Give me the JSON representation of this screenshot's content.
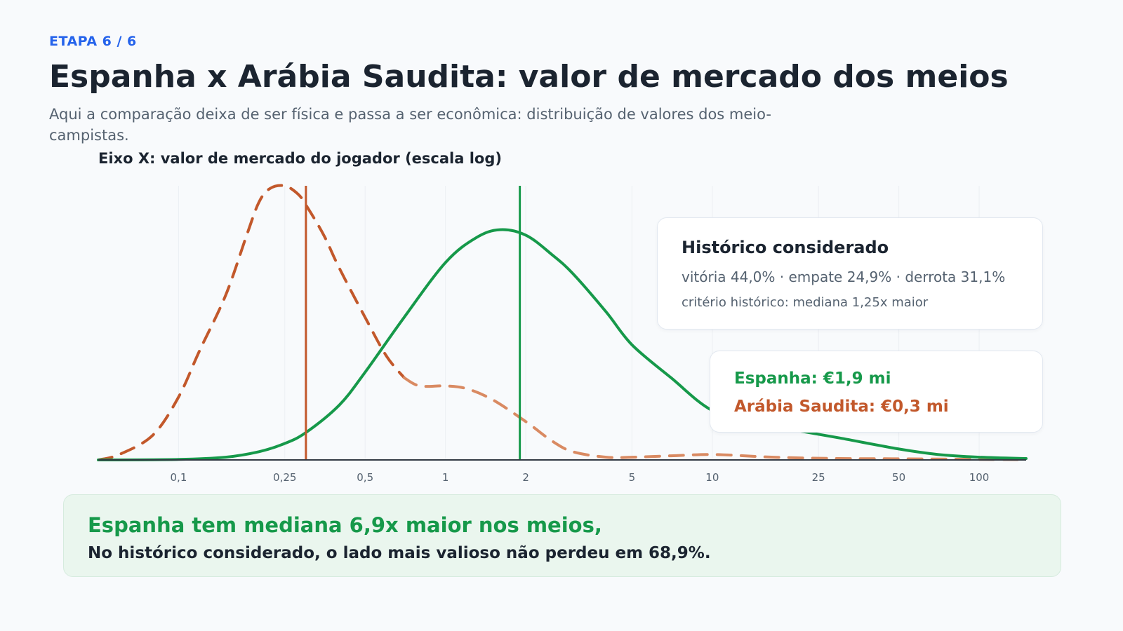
{
  "header": {
    "step": "ETAPA 6 / 6",
    "title": "Espanha x Arábia Saudita: valor de mercado dos meios",
    "subtitle": "Aqui a comparação deixa de ser física e passa a ser econômica: distribuição de valores dos meio-campistas."
  },
  "colors": {
    "spain": "#16994a",
    "saudi": "#c2582b",
    "saudi_light": "#d98a62",
    "grid": "#eceff3",
    "axis": "#333a44"
  },
  "chart_data": {
    "type": "line",
    "xscale": "log",
    "xlabel": "Eixo X: valor de mercado do jogador (escala log)",
    "ylabel": "",
    "xlim": [
      0.05,
      150
    ],
    "ylim": [
      0,
      1.0
    ],
    "grid": "vertical",
    "xticks": [
      {
        "value": 0.1,
        "label": "0,1"
      },
      {
        "value": 0.25,
        "label": "0,25"
      },
      {
        "value": 0.5,
        "label": "0,5"
      },
      {
        "value": 1,
        "label": "1"
      },
      {
        "value": 2,
        "label": "2"
      },
      {
        "value": 5,
        "label": "5"
      },
      {
        "value": 10,
        "label": "10"
      },
      {
        "value": 25,
        "label": "25"
      },
      {
        "value": 50,
        "label": "50"
      },
      {
        "value": 100,
        "label": "100"
      }
    ],
    "series": [
      {
        "name": "Espanha",
        "style": "solid",
        "x": [
          0.05,
          0.1,
          0.15,
          0.2,
          0.25,
          0.3,
          0.4,
          0.5,
          0.7,
          1.0,
          1.3,
          1.6,
          2.0,
          2.5,
          3.0,
          4.0,
          5.0,
          7.0,
          10,
          15,
          20,
          30,
          50,
          70,
          100,
          150
        ],
        "values": [
          0.0,
          0.002,
          0.01,
          0.03,
          0.06,
          0.1,
          0.2,
          0.32,
          0.52,
          0.72,
          0.81,
          0.84,
          0.82,
          0.75,
          0.68,
          0.54,
          0.42,
          0.3,
          0.18,
          0.13,
          0.11,
          0.08,
          0.04,
          0.02,
          0.01,
          0.005
        ]
      },
      {
        "name": "Arábia Saudita",
        "style": "dashed",
        "x": [
          0.05,
          0.06,
          0.08,
          0.1,
          0.12,
          0.15,
          0.18,
          0.2,
          0.22,
          0.25,
          0.28,
          0.3,
          0.35,
          0.4,
          0.5,
          0.6,
          0.7,
          0.8,
          1.0,
          1.2,
          1.5,
          2.0,
          2.5,
          3.0,
          4.0,
          5.0,
          7.0,
          10,
          15,
          20,
          30,
          50,
          100,
          150
        ],
        "values": [
          0.0,
          0.02,
          0.09,
          0.23,
          0.4,
          0.6,
          0.82,
          0.94,
          0.99,
          1.0,
          0.97,
          0.93,
          0.82,
          0.7,
          0.52,
          0.38,
          0.3,
          0.27,
          0.27,
          0.26,
          0.22,
          0.14,
          0.07,
          0.03,
          0.01,
          0.01,
          0.015,
          0.02,
          0.012,
          0.008,
          0.005,
          0.004,
          0.002,
          0.001
        ]
      }
    ],
    "medians": [
      {
        "series": "Espanha",
        "value": 1.9
      },
      {
        "series": "Arábia Saudita",
        "value": 0.3
      }
    ]
  },
  "cards": {
    "history": {
      "title": "Histórico considerado",
      "line1": "vitória 44,0% · empate 24,9% · derrota 31,1%",
      "line2": "critério histórico: mediana 1,25x maior"
    },
    "values": {
      "spain": "Espanha: €1,9 mi",
      "saudi": "Arábia Saudita: €0,3 mi"
    }
  },
  "summary": {
    "headline": "Espanha tem mediana 6,9x maior nos meios,",
    "detail": "No histórico considerado, o lado mais valioso não perdeu em 68,9%."
  }
}
